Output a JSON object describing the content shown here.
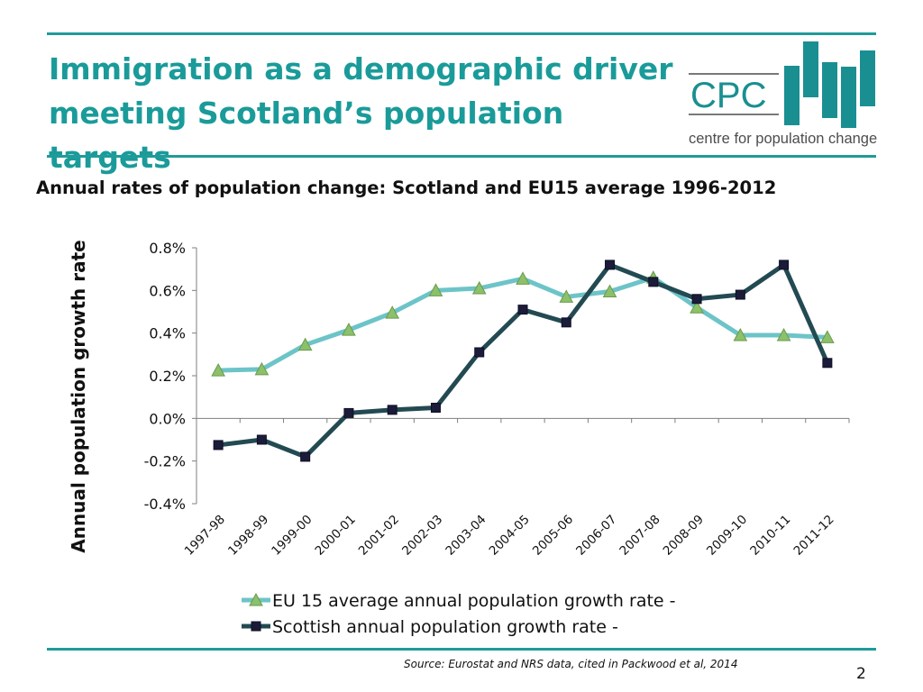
{
  "slide": {
    "title": "Immigration as a demographic driver meeting Scotland’s population targets",
    "source": "Source: Eurostat and NRS data, cited in Packwood et al, 2014",
    "page_number": "2"
  },
  "logo": {
    "abbr": "CPC",
    "full": "centre for population change",
    "brand_color": "#1a8f91",
    "text_color": "#4d4d4d"
  },
  "colors": {
    "accent": "#1f9b9a",
    "eu_line": "#6cc4c8",
    "scot_line": "#234a52",
    "eu_marker": "#8cc06a"
  },
  "chart_data": {
    "type": "line",
    "title": "Annual rates of population change:  Scotland and EU15 average 1996-2012",
    "ylabel": "Annual population growth rate",
    "xlabel": "",
    "categories": [
      "1997-98",
      "1998-99",
      "1999-00",
      "2000-01",
      "2001-02",
      "2002-03",
      "2003-04",
      "2004-05",
      "2005-06",
      "2006-07",
      "2007-08",
      "2008-09",
      "2009-10",
      "2010-11",
      "2011-12"
    ],
    "ylim": [
      -0.4,
      0.8
    ],
    "yticks": [
      0.8,
      0.6,
      0.4,
      0.2,
      0.0,
      -0.2,
      -0.4
    ],
    "ytick_labels": [
      "0.8%",
      "0.6%",
      "0.4%",
      "0.2%",
      "0.0%",
      "-0.2%",
      "-0.4%"
    ],
    "grid": false,
    "legend": "bottom",
    "series": [
      {
        "name": "EU 15 average annual population growth rate -",
        "marker": "triangle",
        "values": [
          0.225,
          0.23,
          0.345,
          0.415,
          0.495,
          0.6,
          0.61,
          0.655,
          0.57,
          0.595,
          0.66,
          0.52,
          0.39,
          0.39,
          0.38
        ]
      },
      {
        "name": "Scottish annual population growth rate -",
        "marker": "square",
        "values": [
          -0.125,
          -0.1,
          -0.18,
          0.025,
          0.04,
          0.05,
          0.31,
          0.51,
          0.45,
          0.72,
          0.64,
          0.56,
          0.58,
          0.72,
          0.26
        ]
      }
    ]
  }
}
